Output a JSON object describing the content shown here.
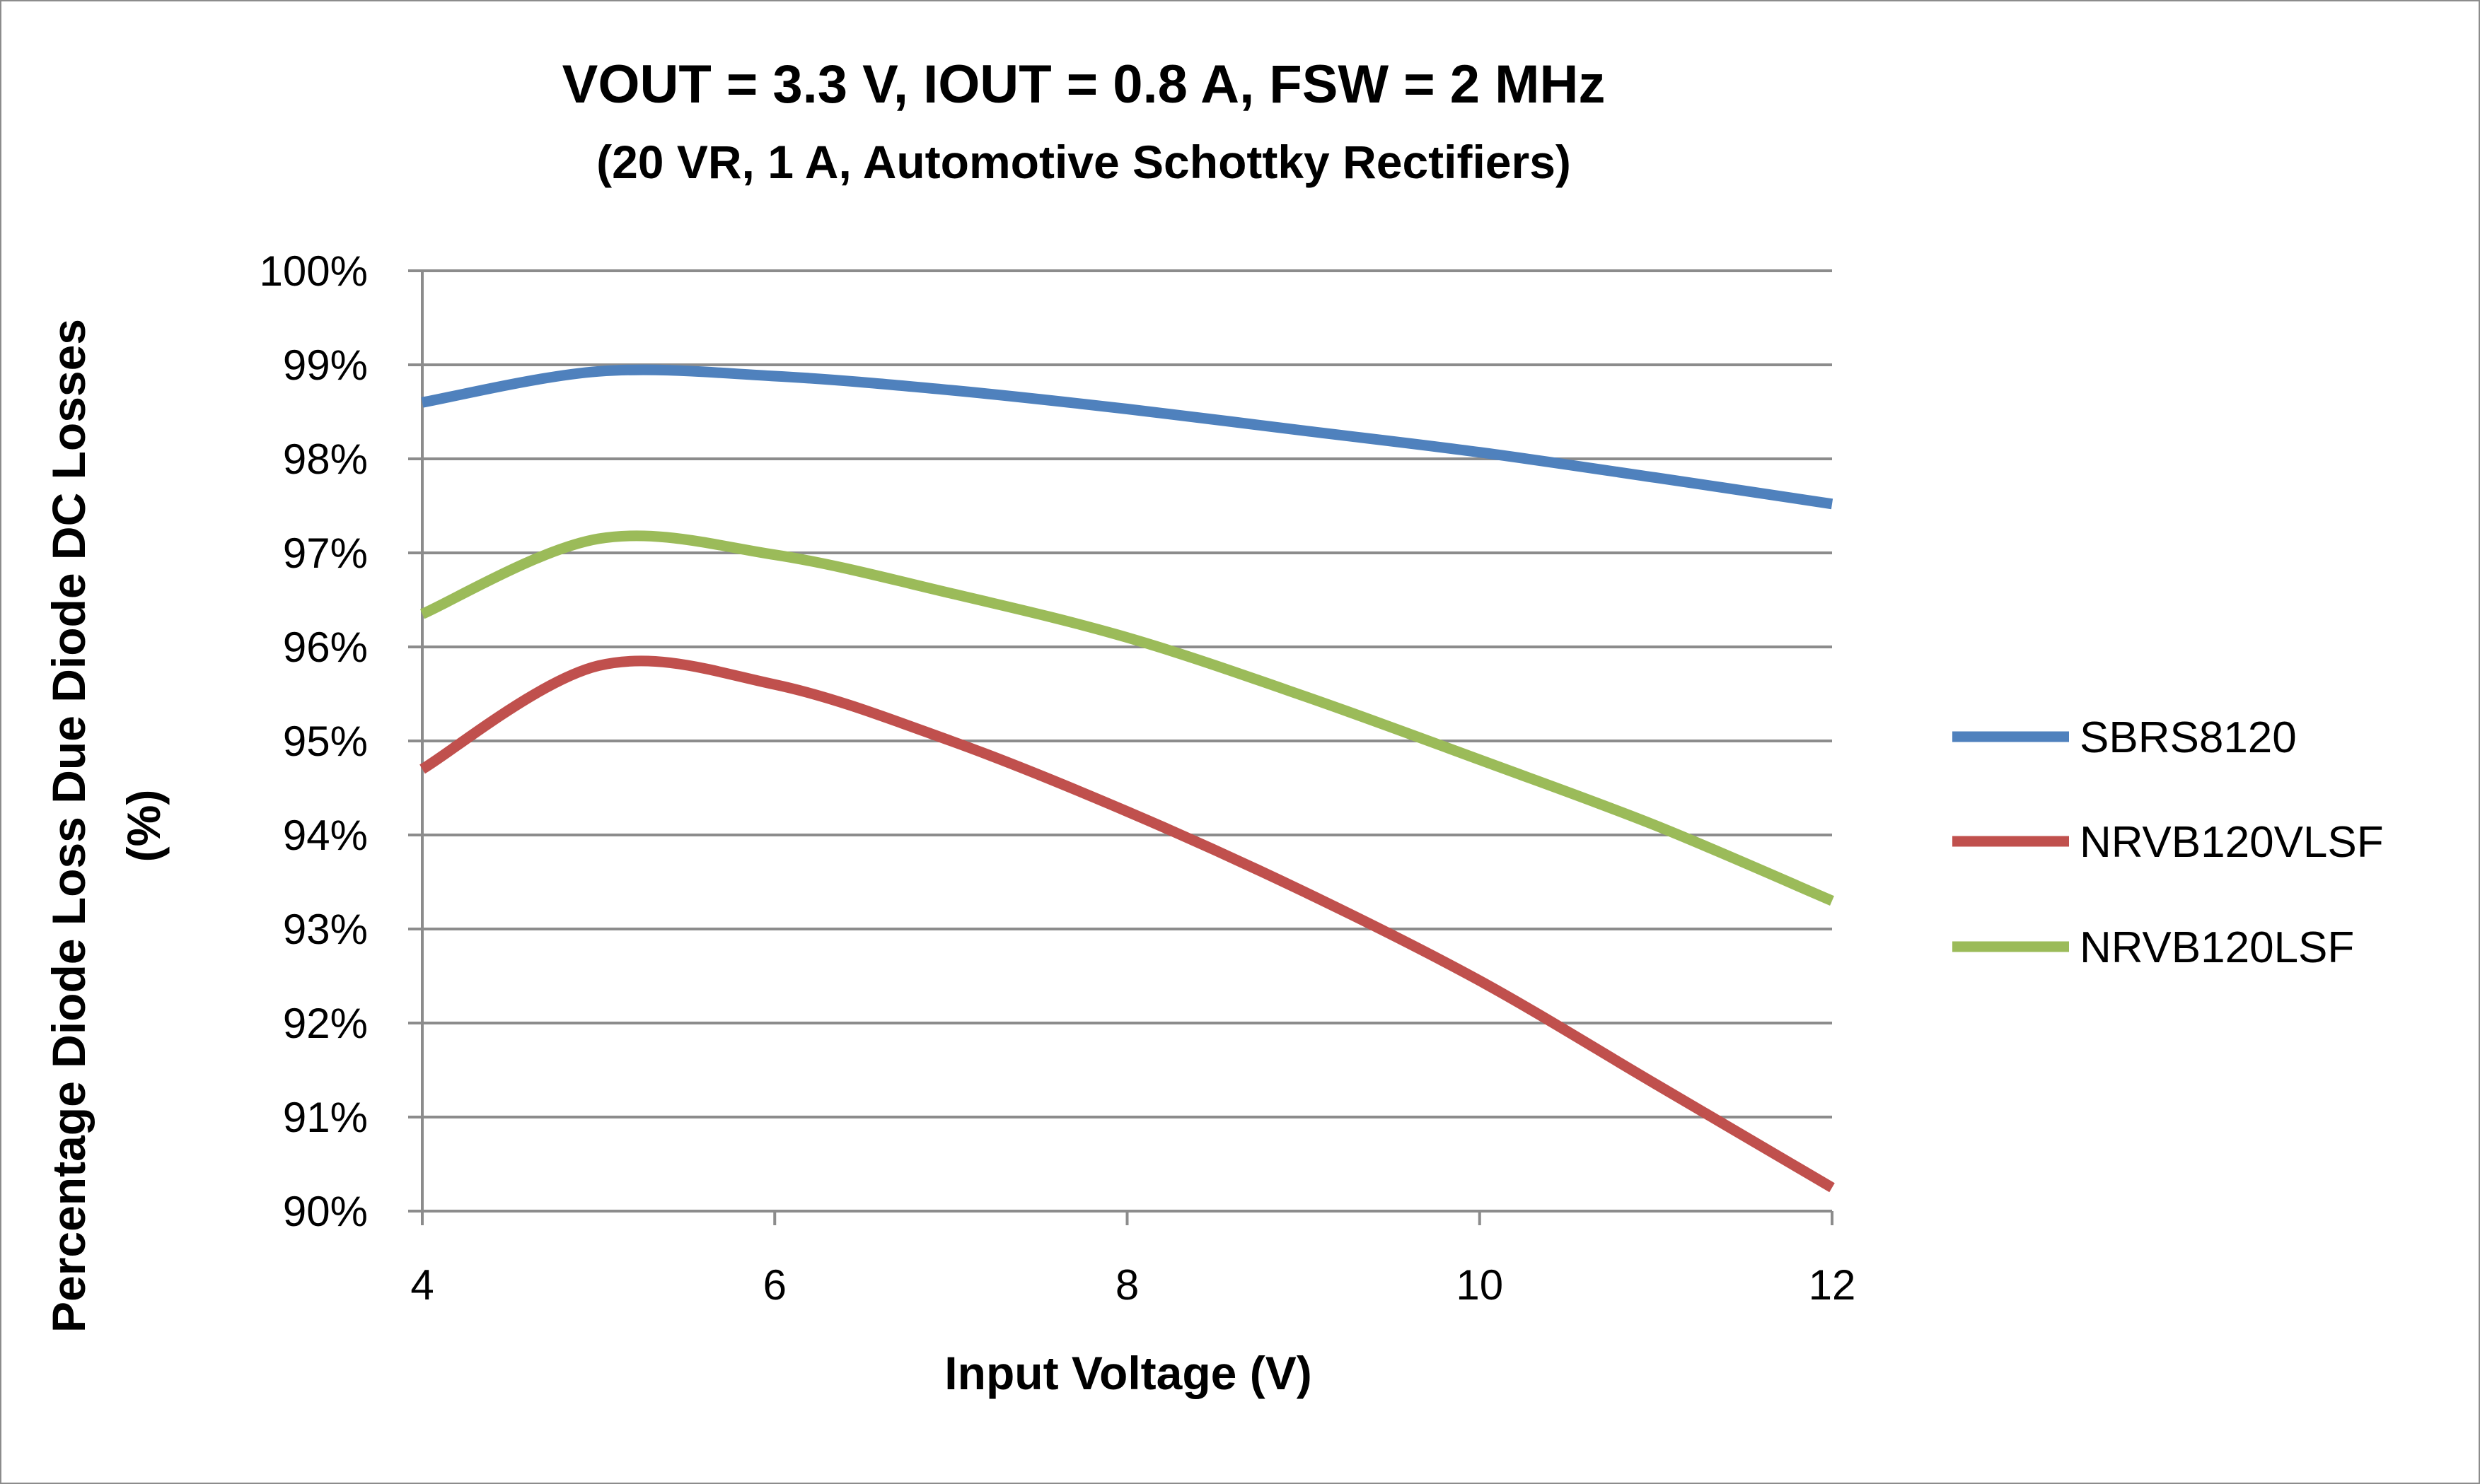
{
  "chart_data": {
    "type": "line",
    "title": "VOUT = 3.3 V, IOUT = 0.8 A, FSW = 2 MHz",
    "subtitle": "(20 VR, 1 A, Automotive Schottky Rectifiers)",
    "xlabel": "Input Voltage (V)",
    "ylabel_line1": "Percentage Diode Loss Due Diode DC Losses",
    "ylabel_line2": "(%)",
    "xlim": [
      4,
      12
    ],
    "ylim": [
      90,
      100
    ],
    "x_ticks": [
      4,
      6,
      8,
      10,
      12
    ],
    "x_tick_labels": [
      "4",
      "6",
      "8",
      "10",
      "12"
    ],
    "y_ticks": [
      90,
      91,
      92,
      93,
      94,
      95,
      96,
      97,
      98,
      99,
      100
    ],
    "y_tick_labels": [
      "90%",
      "91%",
      "92%",
      "93%",
      "94%",
      "95%",
      "96%",
      "97%",
      "98%",
      "99%",
      "100%"
    ],
    "grid": true,
    "legend_position": "right",
    "series": [
      {
        "name": "SBRS8120",
        "color": "#4f81bd",
        "x": [
          4,
          5,
          6,
          7,
          8,
          9,
          10,
          11,
          12
        ],
        "y": [
          98.6,
          98.93,
          98.88,
          98.73,
          98.53,
          98.3,
          98.07,
          97.8,
          97.52
        ]
      },
      {
        "name": "NRVB120VLSF",
        "color": "#c0504d",
        "x": [
          4,
          5,
          6,
          7,
          8,
          9,
          10,
          11,
          12
        ],
        "y": [
          94.7,
          95.8,
          95.6,
          95.0,
          94.25,
          93.4,
          92.45,
          91.35,
          90.25
        ]
      },
      {
        "name": "NRVB120LSF",
        "color": "#9bbb59",
        "x": [
          4,
          5,
          6,
          7,
          8,
          9,
          10,
          11,
          12
        ],
        "y": [
          96.35,
          97.15,
          96.98,
          96.57,
          96.1,
          95.48,
          94.8,
          94.1,
          93.3
        ]
      }
    ]
  }
}
